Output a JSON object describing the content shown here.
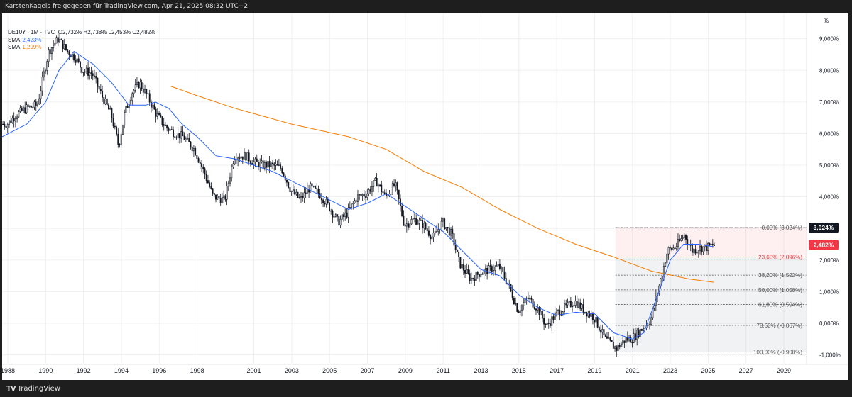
{
  "header": {
    "text": "KarstenKagels freigegeben für TradingView.com, Apr 21, 2025 08:32 UTC+2"
  },
  "legend": {
    "symbol": "DE10Y · 1M · TVC",
    "ohlc": "O2,732%  H2,738%  L2,453%  C2,482%",
    "sma1_label": "SMA",
    "sma1_value": "2,423%",
    "sma2_label": "SMA",
    "sma2_value": "1,299%"
  },
  "footer": {
    "brand": "TradingView",
    "logo_mark": "TV"
  },
  "colors": {
    "sma_short": "#2962ff",
    "sma_long": "#f57c00",
    "last_price": "#f23645",
    "fib_zone": "#f23645",
    "candle": "#131722"
  },
  "chart_data": {
    "type": "candlestick",
    "title": "DE10Y monthly",
    "ylabel_unit": "%",
    "ylim": [
      -1.3,
      9.8
    ],
    "xlim": [
      1987.7,
      2030.2
    ],
    "x_ticks": [
      "1988",
      "1990",
      "1992",
      "1994",
      "1996",
      "1998",
      "2001",
      "2003",
      "2005",
      "2007",
      "2009",
      "2011",
      "2013",
      "2015",
      "2017",
      "2019",
      "2021",
      "2023",
      "2025",
      "2027",
      "2029"
    ],
    "x_tick_years": [
      1988,
      1990,
      1992,
      1994,
      1996,
      1998,
      2001,
      2003,
      2005,
      2007,
      2009,
      2011,
      2013,
      2015,
      2017,
      2019,
      2021,
      2023,
      2025,
      2027,
      2029
    ],
    "y_ticks": [
      {
        "value": 9,
        "label": "9,000%"
      },
      {
        "value": 8,
        "label": "8,000%"
      },
      {
        "value": 7,
        "label": "7,000%"
      },
      {
        "value": 6,
        "label": "6,000%"
      },
      {
        "value": 5,
        "label": "5,000%"
      },
      {
        "value": 4,
        "label": "4,000%"
      },
      {
        "value": 3,
        "label": "3,000%"
      },
      {
        "value": 2,
        "label": "2,000%"
      },
      {
        "value": 1,
        "label": "1,000%"
      },
      {
        "value": 0,
        "label": "0,000%"
      },
      {
        "value": -1,
        "label": "-1,000%"
      }
    ],
    "price_path": [
      [
        1987.7,
        6.3
      ],
      [
        1988.0,
        6.3
      ],
      [
        1988.5,
        6.6
      ],
      [
        1989.0,
        6.8
      ],
      [
        1989.6,
        6.9
      ],
      [
        1990.2,
        8.6
      ],
      [
        1990.7,
        9.0
      ],
      [
        1991.2,
        8.6
      ],
      [
        1991.6,
        8.4
      ],
      [
        1992.0,
        8.0
      ],
      [
        1992.5,
        7.9
      ],
      [
        1993.0,
        7.2
      ],
      [
        1993.5,
        6.6
      ],
      [
        1993.9,
        5.6
      ],
      [
        1994.2,
        6.6
      ],
      [
        1994.6,
        7.3
      ],
      [
        1995.0,
        7.6
      ],
      [
        1995.4,
        7.2
      ],
      [
        1995.9,
        6.6
      ],
      [
        1996.4,
        6.2
      ],
      [
        1996.9,
        6.0
      ],
      [
        1997.3,
        5.9
      ],
      [
        1997.9,
        5.5
      ],
      [
        1998.4,
        4.8
      ],
      [
        1998.9,
        4.0
      ],
      [
        1999.5,
        3.9
      ],
      [
        2000.0,
        5.3
      ],
      [
        2000.6,
        5.3
      ],
      [
        2001.0,
        5.1
      ],
      [
        2001.5,
        5.0
      ],
      [
        2002.0,
        5.0
      ],
      [
        2002.5,
        4.9
      ],
      [
        2003.0,
        4.2
      ],
      [
        2003.5,
        3.9
      ],
      [
        2004.0,
        4.3
      ],
      [
        2004.5,
        4.1
      ],
      [
        2005.0,
        3.7
      ],
      [
        2005.5,
        3.2
      ],
      [
        2006.0,
        3.5
      ],
      [
        2006.5,
        4.0
      ],
      [
        2007.0,
        4.1
      ],
      [
        2007.5,
        4.5
      ],
      [
        2008.0,
        4.0
      ],
      [
        2008.5,
        4.4
      ],
      [
        2009.0,
        3.1
      ],
      [
        2009.5,
        3.3
      ],
      [
        2010.0,
        3.1
      ],
      [
        2010.5,
        2.7
      ],
      [
        2011.0,
        3.2
      ],
      [
        2011.5,
        2.8
      ],
      [
        2011.9,
        1.9
      ],
      [
        2012.5,
        1.4
      ],
      [
        2013.0,
        1.6
      ],
      [
        2013.5,
        1.7
      ],
      [
        2014.0,
        1.8
      ],
      [
        2014.5,
        1.2
      ],
      [
        2015.0,
        0.4
      ],
      [
        2015.5,
        0.8
      ],
      [
        2016.0,
        0.5
      ],
      [
        2016.5,
        -0.1
      ],
      [
        2017.0,
        0.3
      ],
      [
        2017.5,
        0.5
      ],
      [
        2018.0,
        0.7
      ],
      [
        2018.5,
        0.4
      ],
      [
        2019.0,
        0.2
      ],
      [
        2019.6,
        -0.5
      ],
      [
        2020.2,
        -0.8
      ],
      [
        2020.7,
        -0.5
      ],
      [
        2021.0,
        -0.5
      ],
      [
        2021.5,
        -0.2
      ],
      [
        2022.0,
        0.1
      ],
      [
        2022.5,
        1.3
      ],
      [
        2022.9,
        2.3
      ],
      [
        2023.3,
        2.4
      ],
      [
        2023.8,
        2.8
      ],
      [
        2024.2,
        2.3
      ],
      [
        2024.7,
        2.4
      ],
      [
        2025.0,
        2.4
      ],
      [
        2025.3,
        2.48
      ]
    ],
    "series": [
      {
        "name": "SMA short",
        "values": [
          [
            1987.7,
            5.9
          ],
          [
            1989.0,
            6.3
          ],
          [
            1990.0,
            7.0
          ],
          [
            1990.7,
            8.0
          ],
          [
            1991.5,
            8.6
          ],
          [
            1992.5,
            8.2
          ],
          [
            1993.5,
            7.6
          ],
          [
            1994.4,
            6.9
          ],
          [
            1995.3,
            6.9
          ],
          [
            1995.8,
            7.0
          ],
          [
            1996.5,
            6.8
          ],
          [
            1997.2,
            6.3
          ],
          [
            1998.0,
            5.9
          ],
          [
            1999.0,
            5.3
          ],
          [
            2000.0,
            5.2
          ],
          [
            2001.0,
            5.0
          ],
          [
            2002.0,
            4.8
          ],
          [
            2003.0,
            4.5
          ],
          [
            2004.0,
            4.2
          ],
          [
            2005.0,
            3.9
          ],
          [
            2006.0,
            3.6
          ],
          [
            2007.0,
            3.8
          ],
          [
            2008.0,
            4.1
          ],
          [
            2009.0,
            3.7
          ],
          [
            2010.0,
            3.3
          ],
          [
            2011.0,
            2.9
          ],
          [
            2012.0,
            2.3
          ],
          [
            2013.0,
            1.7
          ],
          [
            2014.0,
            1.5
          ],
          [
            2015.0,
            0.9
          ],
          [
            2016.0,
            0.5
          ],
          [
            2017.0,
            0.25
          ],
          [
            2018.0,
            0.35
          ],
          [
            2019.0,
            0.3
          ],
          [
            2020.0,
            -0.3
          ],
          [
            2021.0,
            -0.5
          ],
          [
            2021.6,
            -0.3
          ],
          [
            2022.4,
            1.0
          ],
          [
            2023.0,
            2.0
          ],
          [
            2023.7,
            2.5
          ],
          [
            2024.5,
            2.5
          ],
          [
            2025.3,
            2.42
          ]
        ]
      },
      {
        "name": "SMA long",
        "values": [
          [
            1996.6,
            7.5
          ],
          [
            1998.0,
            7.2
          ],
          [
            2000.0,
            6.8
          ],
          [
            2003.0,
            6.3
          ],
          [
            2006.0,
            5.9
          ],
          [
            2008.0,
            5.5
          ],
          [
            2010.0,
            4.8
          ],
          [
            2012.0,
            4.3
          ],
          [
            2014.0,
            3.6
          ],
          [
            2016.0,
            3.0
          ],
          [
            2018.0,
            2.5
          ],
          [
            2020.0,
            2.1
          ],
          [
            2022.0,
            1.65
          ],
          [
            2024.0,
            1.4
          ],
          [
            2025.3,
            1.3
          ]
        ]
      }
    ],
    "fibonacci": {
      "x_start": 2020.1,
      "x_end": 2030.2,
      "levels": [
        {
          "ratio": "0,00%",
          "value": 3.024,
          "label": "0,00% (3,024%)"
        },
        {
          "ratio": "23,60%",
          "value": 2.096,
          "label": "23,60% (2,096%)"
        },
        {
          "ratio": "38,20%",
          "value": 1.522,
          "label": "38,20% (1,522%)"
        },
        {
          "ratio": "50,00%",
          "value": 1.058,
          "label": "50,00% (1,058%)"
        },
        {
          "ratio": "61,80%",
          "value": 0.594,
          "label": "61,80% (0,594%)"
        },
        {
          "ratio": "78,60%",
          "value": -0.067,
          "label": "78,60% (-0,067%)"
        },
        {
          "ratio": "100,00%",
          "value": -0.908,
          "label": "100,00% (-0,908%)"
        }
      ]
    },
    "price_tags": [
      {
        "value": 3.024,
        "label": "3,024%",
        "style": "dark"
      },
      {
        "value": 2.482,
        "label": "2,482%",
        "style": "red"
      }
    ]
  }
}
